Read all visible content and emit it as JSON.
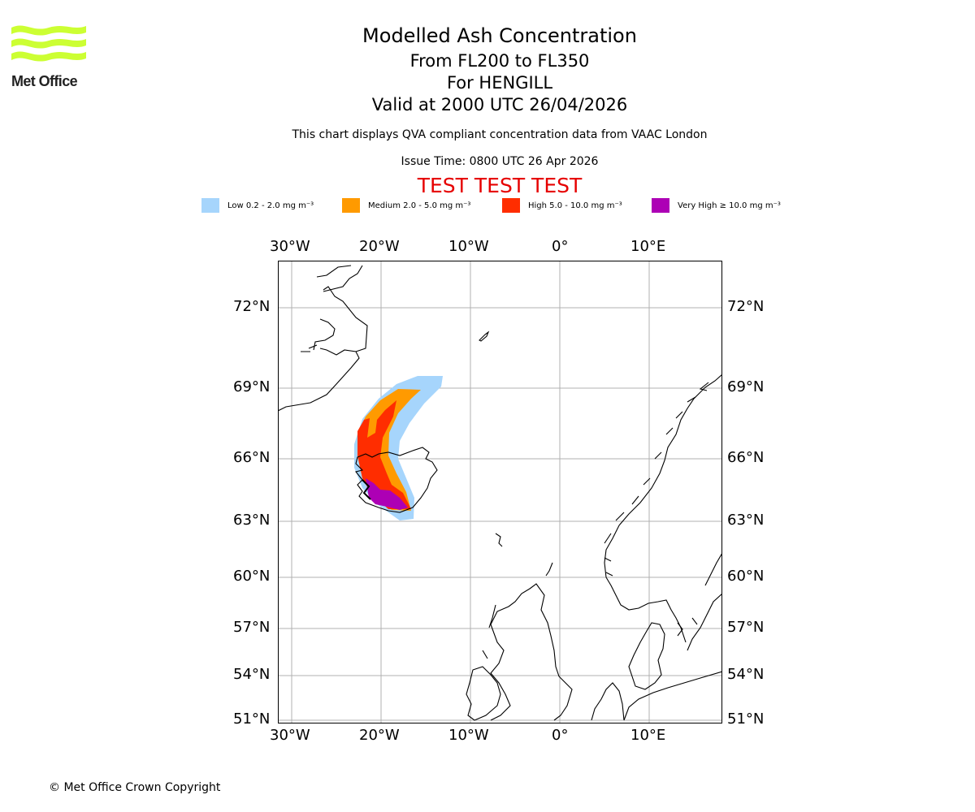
{
  "brand": {
    "name": "Met Office",
    "logo_icon": "met-office-waves-logo-icon",
    "logo_color": "#ccff33"
  },
  "header": {
    "title": "Modelled Ash Concentration",
    "flight_levels": "From FL200 to FL350",
    "volcano": "For HENGILL",
    "valid_time": "Valid at 2000 UTC 26/04/2026",
    "description": "This chart displays QVA compliant concentration data from VAAC London",
    "issue_time": "Issue Time: 0800 UTC 26 Apr 2026",
    "test_banner": "TEST TEST TEST",
    "test_color": "#e60000"
  },
  "legend": [
    {
      "label": "Low 0.2 - 2.0 mg m⁻³",
      "color": "#a6d5fc"
    },
    {
      "label": "Medium 2.0 - 5.0 mg m⁻³",
      "color": "#ff9a00"
    },
    {
      "label": "High 5.0 - 10.0 mg m⁻³",
      "color": "#ff2d00"
    },
    {
      "label": "Very High ≥ 10.0 mg m⁻³",
      "color": "#ad00b5"
    }
  ],
  "map": {
    "lon_labels": [
      "30°W",
      "20°W",
      "10°W",
      "0°",
      "10°E"
    ],
    "lat_labels": [
      "72°N",
      "69°N",
      "66°N",
      "63°N",
      "60°N",
      "57°N",
      "54°N",
      "51°N"
    ],
    "extent": {
      "lon_min": -31.5,
      "lon_max": 18,
      "lat_min": 51,
      "lat_max": 74
    },
    "gridline_color": "#b0b0b0"
  },
  "footer": {
    "copyright": "© Met Office Crown Copyright"
  }
}
